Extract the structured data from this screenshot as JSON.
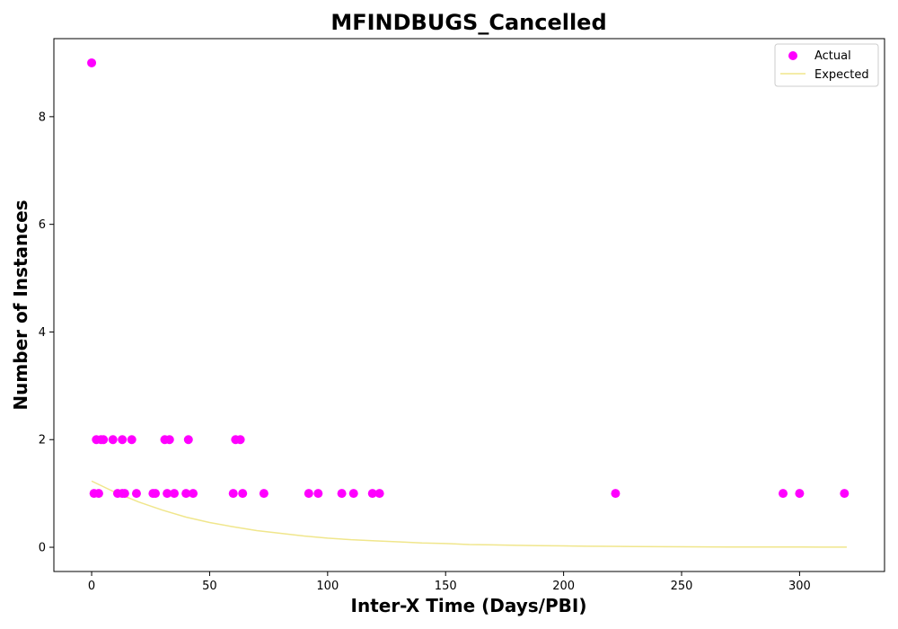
{
  "chart_data": {
    "type": "scatter",
    "title": "MFINDBUGS_Cancelled",
    "xlabel": "Inter-X Time (Days/PBI)",
    "ylabel": "Number of Instances",
    "xlim": [
      -16,
      336
    ],
    "ylim": [
      -0.45,
      9.45
    ],
    "xticks": [
      0,
      50,
      100,
      150,
      200,
      250,
      300
    ],
    "yticks": [
      0,
      2,
      4,
      6,
      8
    ],
    "grid": false,
    "legend_position": "top-right",
    "series": [
      {
        "name": "Actual",
        "kind": "scatter",
        "color": "#ff00ff",
        "points": [
          {
            "x": 0,
            "y": 9
          },
          {
            "x": 1,
            "y": 1
          },
          {
            "x": 2,
            "y": 2
          },
          {
            "x": 3,
            "y": 1
          },
          {
            "x": 4,
            "y": 2
          },
          {
            "x": 5,
            "y": 2
          },
          {
            "x": 9,
            "y": 2
          },
          {
            "x": 11,
            "y": 1
          },
          {
            "x": 13,
            "y": 2
          },
          {
            "x": 13,
            "y": 1
          },
          {
            "x": 14,
            "y": 1
          },
          {
            "x": 17,
            "y": 2
          },
          {
            "x": 19,
            "y": 1
          },
          {
            "x": 26,
            "y": 1
          },
          {
            "x": 27,
            "y": 1
          },
          {
            "x": 31,
            "y": 2
          },
          {
            "x": 32,
            "y": 1
          },
          {
            "x": 33,
            "y": 2
          },
          {
            "x": 35,
            "y": 1
          },
          {
            "x": 40,
            "y": 1
          },
          {
            "x": 41,
            "y": 2
          },
          {
            "x": 43,
            "y": 1
          },
          {
            "x": 60,
            "y": 1
          },
          {
            "x": 61,
            "y": 2
          },
          {
            "x": 63,
            "y": 2
          },
          {
            "x": 64,
            "y": 1
          },
          {
            "x": 73,
            "y": 1
          },
          {
            "x": 92,
            "y": 1
          },
          {
            "x": 96,
            "y": 1
          },
          {
            "x": 106,
            "y": 1
          },
          {
            "x": 111,
            "y": 1
          },
          {
            "x": 119,
            "y": 1
          },
          {
            "x": 122,
            "y": 1
          },
          {
            "x": 222,
            "y": 1
          },
          {
            "x": 293,
            "y": 1
          },
          {
            "x": 300,
            "y": 1
          },
          {
            "x": 319,
            "y": 1
          }
        ]
      },
      {
        "name": "Expected",
        "kind": "line",
        "color": "#f0e68c",
        "points": [
          {
            "x": 0,
            "y": 1.23
          },
          {
            "x": 10,
            "y": 1.02
          },
          {
            "x": 20,
            "y": 0.84
          },
          {
            "x": 30,
            "y": 0.69
          },
          {
            "x": 40,
            "y": 0.56
          },
          {
            "x": 50,
            "y": 0.46
          },
          {
            "x": 60,
            "y": 0.38
          },
          {
            "x": 70,
            "y": 0.31
          },
          {
            "x": 80,
            "y": 0.26
          },
          {
            "x": 90,
            "y": 0.21
          },
          {
            "x": 100,
            "y": 0.17
          },
          {
            "x": 110,
            "y": 0.14
          },
          {
            "x": 120,
            "y": 0.12
          },
          {
            "x": 130,
            "y": 0.1
          },
          {
            "x": 140,
            "y": 0.08
          },
          {
            "x": 150,
            "y": 0.07
          },
          {
            "x": 160,
            "y": 0.05
          },
          {
            "x": 170,
            "y": 0.045
          },
          {
            "x": 180,
            "y": 0.037
          },
          {
            "x": 190,
            "y": 0.03
          },
          {
            "x": 200,
            "y": 0.025
          },
          {
            "x": 210,
            "y": 0.02
          },
          {
            "x": 220,
            "y": 0.017
          },
          {
            "x": 230,
            "y": 0.014
          },
          {
            "x": 240,
            "y": 0.011
          },
          {
            "x": 250,
            "y": 0.009
          },
          {
            "x": 260,
            "y": 0.008
          },
          {
            "x": 270,
            "y": 0.006
          },
          {
            "x": 280,
            "y": 0.005
          },
          {
            "x": 290,
            "y": 0.004
          },
          {
            "x": 300,
            "y": 0.004
          },
          {
            "x": 310,
            "y": 0.003
          },
          {
            "x": 320,
            "y": 0.002
          }
        ]
      }
    ]
  }
}
